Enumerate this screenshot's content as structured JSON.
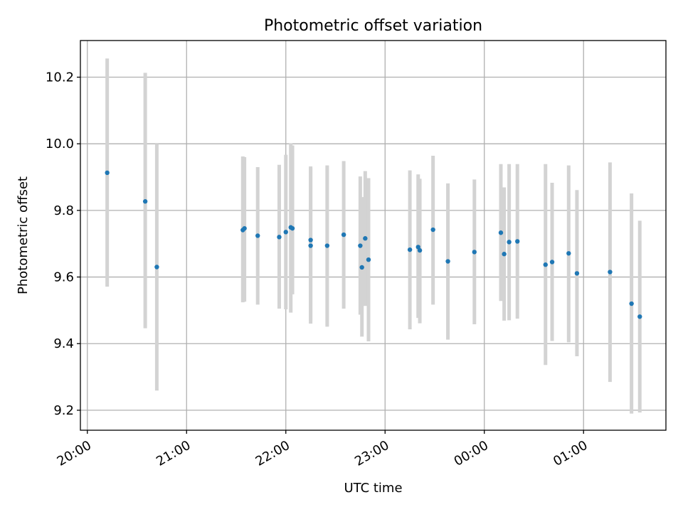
{
  "chart_data": {
    "type": "scatter",
    "title": "Photometric offset variation",
    "xlabel": "UTC time",
    "ylabel": "Photometric offset",
    "x_unit": "hours since 20:00 UTC",
    "xlim": [
      -0.07,
      5.83
    ],
    "ylim": [
      9.14,
      10.31
    ],
    "x_ticks": [
      {
        "value": 0,
        "label": "20:00"
      },
      {
        "value": 1,
        "label": "21:00"
      },
      {
        "value": 2,
        "label": "22:00"
      },
      {
        "value": 3,
        "label": "23:00"
      },
      {
        "value": 4,
        "label": "00:00"
      },
      {
        "value": 5,
        "label": "01:00"
      }
    ],
    "y_ticks": [
      {
        "value": 9.2,
        "label": "9.2"
      },
      {
        "value": 9.4,
        "label": "9.4"
      },
      {
        "value": 9.6,
        "label": "9.6"
      },
      {
        "value": 9.8,
        "label": "9.8"
      },
      {
        "value": 10.0,
        "label": "10.0"
      },
      {
        "value": 10.2,
        "label": "10.2"
      }
    ],
    "grid": true,
    "marker_color": "#1f77b4",
    "errorbar_color": "#d3d3d3",
    "points": [
      {
        "t": "20:12",
        "y": 9.913,
        "lo": 9.571,
        "hi": 10.256
      },
      {
        "t": "20:35",
        "y": 9.827,
        "lo": 9.446,
        "hi": 10.213
      },
      {
        "t": "20:42",
        "y": 9.63,
        "lo": 9.259,
        "hi": 10.0
      },
      {
        "t": "21:34",
        "y": 9.741,
        "lo": 9.524,
        "hi": 9.962
      },
      {
        "t": "21:35",
        "y": 9.746,
        "lo": 9.526,
        "hi": 9.96
      },
      {
        "t": "21:43",
        "y": 9.724,
        "lo": 9.517,
        "hi": 9.93
      },
      {
        "t": "21:56",
        "y": 9.72,
        "lo": 9.505,
        "hi": 9.937
      },
      {
        "t": "22:00",
        "y": 9.735,
        "lo": 9.503,
        "hi": 9.967
      },
      {
        "t": "22:03",
        "y": 9.749,
        "lo": 9.493,
        "hi": 10.001
      },
      {
        "t": "22:04",
        "y": 9.746,
        "lo": 9.548,
        "hi": 9.995
      },
      {
        "t": "22:15",
        "y": 9.711,
        "lo": 9.46,
        "hi": 9.932
      },
      {
        "t": "22:15",
        "y": 9.694,
        "lo": 9.47,
        "hi": 9.927
      },
      {
        "t": "22:25",
        "y": 9.694,
        "lo": 9.451,
        "hi": 9.935
      },
      {
        "t": "22:35",
        "y": 9.727,
        "lo": 9.505,
        "hi": 9.948
      },
      {
        "t": "22:45",
        "y": 9.694,
        "lo": 9.487,
        "hi": 9.902
      },
      {
        "t": "22:46",
        "y": 9.629,
        "lo": 9.421,
        "hi": 9.84
      },
      {
        "t": "22:48",
        "y": 9.716,
        "lo": 9.513,
        "hi": 9.918
      },
      {
        "t": "22:50",
        "y": 9.652,
        "lo": 9.407,
        "hi": 9.897
      },
      {
        "t": "23:15",
        "y": 9.682,
        "lo": 9.443,
        "hi": 9.92
      },
      {
        "t": "23:20",
        "y": 9.69,
        "lo": 9.477,
        "hi": 9.908
      },
      {
        "t": "23:21",
        "y": 9.68,
        "lo": 9.461,
        "hi": 9.895
      },
      {
        "t": "23:29",
        "y": 9.742,
        "lo": 9.517,
        "hi": 9.964
      },
      {
        "t": "23:38",
        "y": 9.647,
        "lo": 9.412,
        "hi": 9.881
      },
      {
        "t": "23:54",
        "y": 9.675,
        "lo": 9.458,
        "hi": 9.893
      },
      {
        "t": "00:10",
        "y": 9.733,
        "lo": 9.528,
        "hi": 9.939
      },
      {
        "t": "00:12",
        "y": 9.669,
        "lo": 9.469,
        "hi": 9.869
      },
      {
        "t": "00:15",
        "y": 9.705,
        "lo": 9.47,
        "hi": 9.939
      },
      {
        "t": "00:20",
        "y": 9.707,
        "lo": 9.475,
        "hi": 9.939
      },
      {
        "t": "00:37",
        "y": 9.637,
        "lo": 9.336,
        "hi": 9.939
      },
      {
        "t": "00:41",
        "y": 9.645,
        "lo": 9.408,
        "hi": 9.883
      },
      {
        "t": "00:51",
        "y": 9.671,
        "lo": 9.404,
        "hi": 9.935
      },
      {
        "t": "00:56",
        "y": 9.611,
        "lo": 9.362,
        "hi": 9.861
      },
      {
        "t": "01:16",
        "y": 9.615,
        "lo": 9.285,
        "hi": 9.944
      },
      {
        "t": "01:29",
        "y": 9.52,
        "lo": 9.19,
        "hi": 9.851
      },
      {
        "t": "01:34",
        "y": 9.481,
        "lo": 9.193,
        "hi": 9.769
      }
    ]
  }
}
